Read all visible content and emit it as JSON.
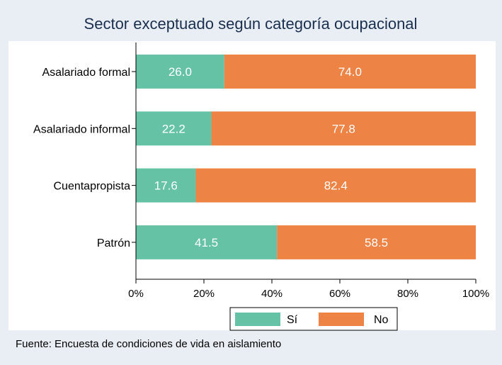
{
  "chart_data": {
    "type": "bar",
    "orientation": "horizontal",
    "stacked": true,
    "title": "Sector exceptuado según categoría ocupacional",
    "categories": [
      "Asalariado formal",
      "Asalariado informal",
      "Cuentapropista",
      "Patrón"
    ],
    "series": [
      {
        "name": "Sí",
        "color": "#66c2a5",
        "values": [
          26.0,
          22.2,
          17.6,
          41.5
        ]
      },
      {
        "name": "No",
        "color": "#ed8446",
        "values": [
          74.0,
          77.8,
          82.4,
          58.5
        ]
      }
    ],
    "xlim": [
      0,
      100
    ],
    "xticks": [
      0,
      20,
      40,
      60,
      80,
      100
    ],
    "xtick_labels": [
      "0%",
      "20%",
      "40%",
      "60%",
      "80%",
      "100%"
    ],
    "xlabel": "",
    "ylabel": "",
    "grid": false,
    "legend_position": "bottom",
    "source_note": "Fuente: Encuesta de condiciones de vida en aislamiento"
  }
}
